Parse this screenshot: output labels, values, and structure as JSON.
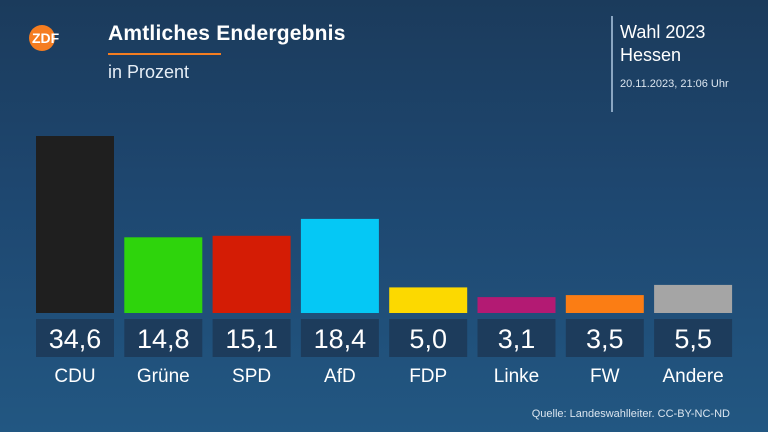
{
  "header": {
    "logo_text": "ZDF",
    "title": "Amtliches Endergebnis",
    "subtitle": "in Prozent"
  },
  "info": {
    "line1": "Wahl 2023",
    "line2": "Hessen",
    "timestamp": "20.11.2023, 21:06 Uhr"
  },
  "footer": {
    "source": "Quelle: Landeswahlleiter. CC-BY-NC-ND"
  },
  "colors": {
    "accent": "#f57d20",
    "label_box": "#1d3c5c"
  },
  "chart_data": {
    "type": "bar",
    "title": "Amtliches Endergebnis",
    "subtitle": "in Prozent",
    "categories": [
      "CDU",
      "Grüne",
      "SPD",
      "AfD",
      "FDP",
      "Linke",
      "FW",
      "Andere"
    ],
    "values": [
      34.6,
      14.8,
      15.1,
      18.4,
      5.0,
      3.1,
      3.5,
      5.5
    ],
    "value_labels": [
      "34,6",
      "14,8",
      "15,1",
      "18,4",
      "5,0",
      "3,1",
      "3,5",
      "5,5"
    ],
    "colors": [
      "#1f1f1f",
      "#2ed40c",
      "#d41c05",
      "#05c8f5",
      "#fcd900",
      "#b31a73",
      "#fb7d14",
      "#a5a5a5"
    ],
    "ylim": [
      0,
      34.6
    ],
    "grid": false,
    "legend": "none"
  }
}
